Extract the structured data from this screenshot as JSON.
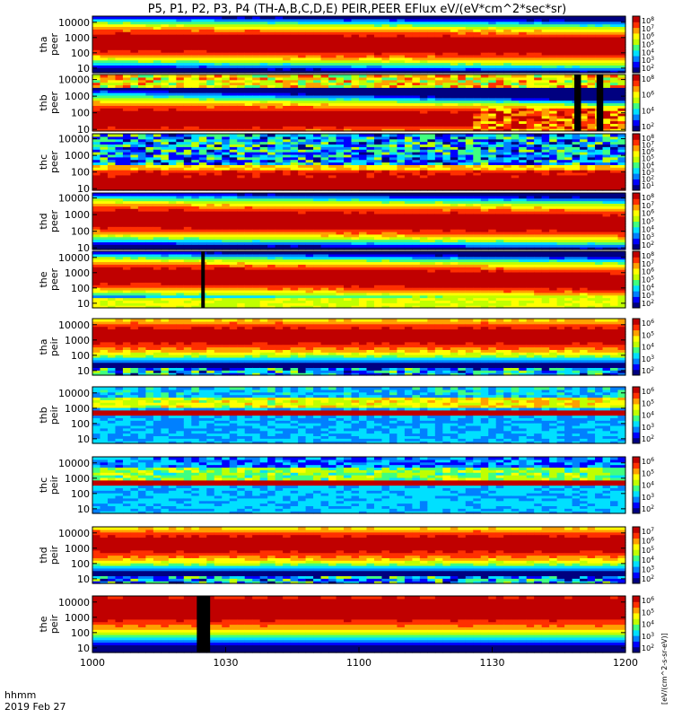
{
  "title": "P5, P1, P2, P3, P4 (TH-A,B,C,D,E) PEIR,PEER EFlux eV/(eV*cm^2*sec*sr)",
  "footer": {
    "label": "hhmm",
    "date": "2019 Feb 27"
  },
  "colorbar_units_label": "[eV/(cm^2-s-sr-eV)]",
  "colormap": [
    "#000080",
    "#0000ff",
    "#0080ff",
    "#00e0ff",
    "#40ff80",
    "#c0ff00",
    "#ffff00",
    "#ffa000",
    "#ff3000",
    "#c00000"
  ],
  "chart_data": {
    "type": "heatmap",
    "xlabel": "",
    "xticks": [
      "1000",
      "1030",
      "1100",
      "1130",
      "1200"
    ],
    "xlim_minutes": [
      0,
      120
    ],
    "panels": [
      {
        "id": "tha-peer",
        "label": [
          "tha",
          "peer"
        ],
        "yticks": [
          "10000",
          "1000",
          "100",
          "10"
        ],
        "ylim": [
          5,
          25000
        ],
        "y_scale": "log",
        "cbar_ticks": [
          "10^8",
          "10^7",
          "10^6",
          "10^5",
          "10^4",
          "10^3",
          "10^2"
        ],
        "profile": "electron-broad"
      },
      {
        "id": "thb-peer",
        "label": [
          "thb",
          "peer"
        ],
        "yticks": [
          "10000",
          "1000",
          "100",
          "10"
        ],
        "ylim": [
          8,
          20000
        ],
        "y_scale": "log",
        "cbar_ticks": [
          "10^8",
          "10^6",
          "10^4",
          "10^2"
        ],
        "profile": "electron-low",
        "black_gaps_minutes": [
          [
            108.5,
            110.0
          ],
          [
            113.5,
            115.0
          ]
        ]
      },
      {
        "id": "thc-peer",
        "label": [
          "thc",
          "peer"
        ],
        "yticks": [
          "10000",
          "1000",
          "100",
          "10"
        ],
        "ylim": [
          8,
          20000
        ],
        "y_scale": "log",
        "cbar_ticks": [
          "10^8",
          "10^7",
          "10^6",
          "10^5",
          "10^4",
          "10^3",
          "10^2",
          "10^1"
        ],
        "profile": "electron-noisy-top"
      },
      {
        "id": "thd-peer",
        "label": [
          "thd",
          "peer"
        ],
        "yticks": [
          "10000",
          "1000",
          "100",
          "10"
        ],
        "ylim": [
          8,
          20000
        ],
        "y_scale": "log",
        "cbar_ticks": [
          "10^8",
          "10^7",
          "10^6",
          "10^5",
          "10^4",
          "10^3",
          "10^2"
        ],
        "profile": "electron-broad"
      },
      {
        "id": "the-peer",
        "label": [
          "the",
          "peer"
        ],
        "yticks": [
          "10000",
          "1000",
          "100",
          "10"
        ],
        "ylim": [
          5,
          25000
        ],
        "y_scale": "log",
        "cbar_ticks": [
          "10^8",
          "10^7",
          "10^6",
          "10^5",
          "10^4",
          "10^3",
          "10^2"
        ],
        "profile": "electron-the",
        "black_gaps_minutes": [
          [
            24.5,
            25.3
          ]
        ]
      },
      {
        "id": "tha-peir",
        "label": [
          "tha",
          "peir"
        ],
        "yticks": [
          "10000",
          "1000",
          "100",
          "10"
        ],
        "ylim": [
          5,
          25000
        ],
        "y_scale": "log",
        "cbar_ticks": [
          "10^6",
          "10^5",
          "10^4",
          "10^3",
          "10^2"
        ],
        "profile": "ion-broad"
      },
      {
        "id": "thb-peir",
        "label": [
          "thb",
          "peir"
        ],
        "yticks": [
          "10000",
          "1000",
          "100",
          "10"
        ],
        "ylim": [
          5,
          25000
        ],
        "y_scale": "log",
        "cbar_ticks": [
          "10^6",
          "10^5",
          "10^4",
          "10^3",
          "10^2"
        ],
        "profile": "ion-band"
      },
      {
        "id": "thc-peir",
        "label": [
          "thc",
          "peir"
        ],
        "yticks": [
          "10000",
          "1000",
          "100",
          "10"
        ],
        "ylim": [
          5,
          25000
        ],
        "y_scale": "log",
        "cbar_ticks": [
          "10^6",
          "10^5",
          "10^4",
          "10^3",
          "10^2"
        ],
        "profile": "ion-band2"
      },
      {
        "id": "thd-peir",
        "label": [
          "thd",
          "peir"
        ],
        "yticks": [
          "10000",
          "1000",
          "100",
          "10"
        ],
        "ylim": [
          5,
          25000
        ],
        "y_scale": "log",
        "cbar_ticks": [
          "10^7",
          "10^6",
          "10^5",
          "10^4",
          "10^3",
          "10^2"
        ],
        "profile": "ion-broad"
      },
      {
        "id": "the-peir",
        "label": [
          "the",
          "peir"
        ],
        "yticks": [
          "10000",
          "1000",
          "100",
          "10"
        ],
        "ylim": [
          5,
          25000
        ],
        "y_scale": "log",
        "cbar_ticks": [
          "10^6",
          "10^5",
          "10^4",
          "10^3",
          "10^2"
        ],
        "profile": "ion-the",
        "black_gaps_minutes": [
          [
            23.5,
            26.5
          ]
        ]
      }
    ]
  }
}
